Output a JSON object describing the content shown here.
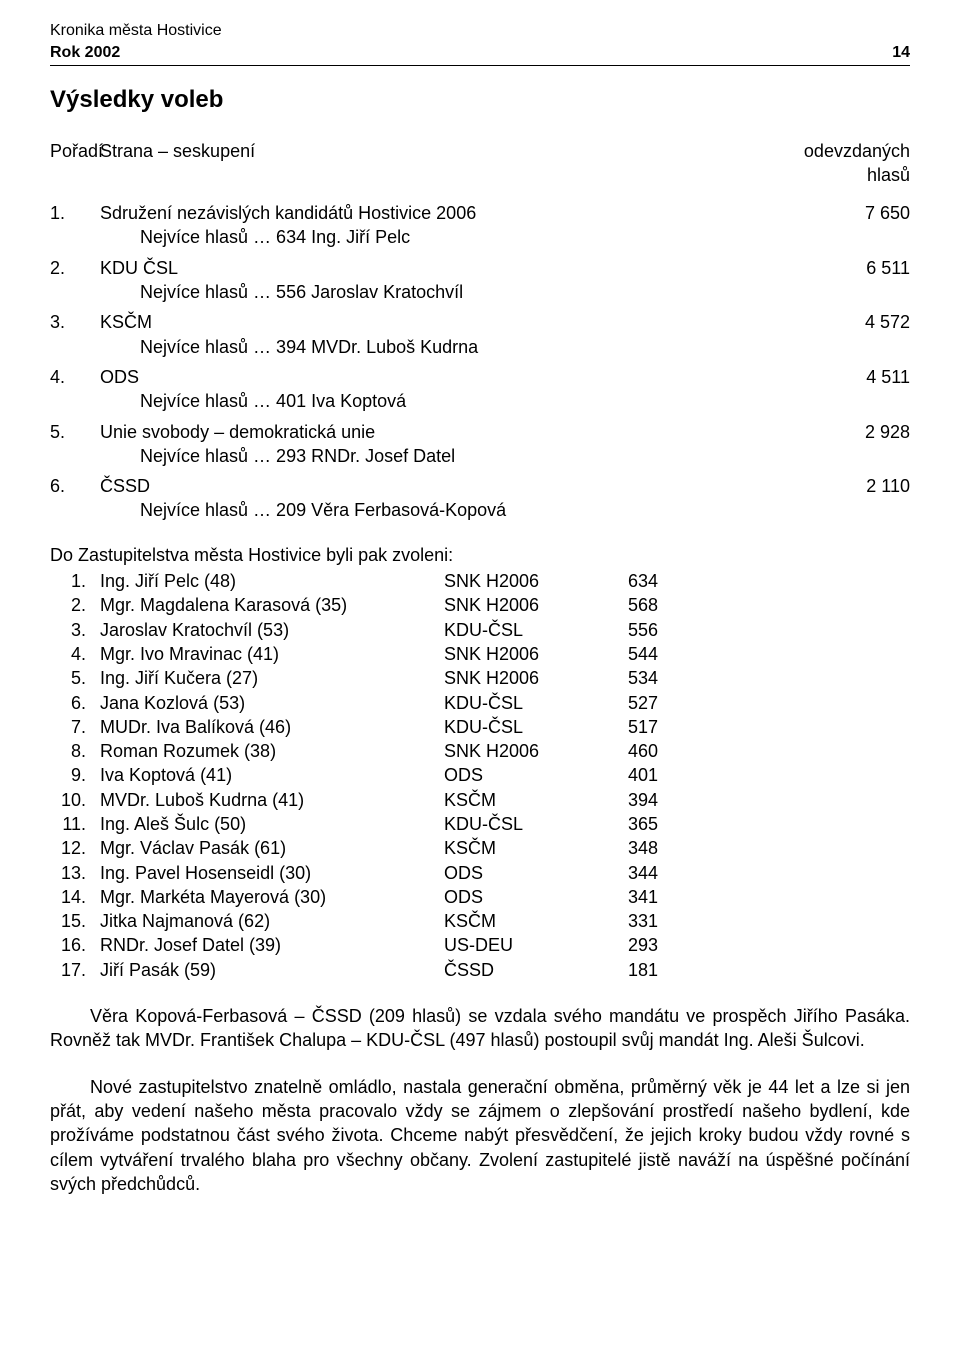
{
  "header": {
    "line1": "Kronika města Hostivice",
    "line2_left": "Rok 2002",
    "line2_right": "14"
  },
  "title": "Výsledky voleb",
  "parties_header": {
    "col1": "Pořadí",
    "col2": "Strana – seskupení",
    "col3": "odevzdaných hlasů"
  },
  "parties": [
    {
      "num": "1.",
      "name": "Sdružení nezávislých kandidátů Hostivice 2006",
      "votes": "7 650",
      "sub": "Nejvíce hlasů … 634 Ing. Jiří Pelc"
    },
    {
      "num": "2.",
      "name": "KDU ČSL",
      "votes": "6 511",
      "sub": "Nejvíce hlasů … 556 Jaroslav Kratochvíl"
    },
    {
      "num": "3.",
      "name": "KSČM",
      "votes": "4 572",
      "sub": "Nejvíce hlasů … 394 MVDr. Luboš Kudrna"
    },
    {
      "num": "4.",
      "name": "ODS",
      "votes": "4 511",
      "sub": "Nejvíce hlasů … 401 Iva Koptová"
    },
    {
      "num": "5.",
      "name": "Unie svobody – demokratická unie",
      "votes": "2 928",
      "sub": "Nejvíce hlasů … 293 RNDr. Josef Datel"
    },
    {
      "num": "6.",
      "name": "ČSSD",
      "votes": "2 110",
      "sub": "Nejvíce hlasů … 209 Věra Ferbasová-Kopová"
    }
  ],
  "elected_intro": "Do Zastupitelstva města Hostivice byli pak zvoleni:",
  "elected": [
    {
      "num": "1.",
      "name": "Ing. Jiří Pelc (48)",
      "party": "SNK H2006",
      "votes": "634"
    },
    {
      "num": "2.",
      "name": "Mgr. Magdalena Karasová (35)",
      "party": "SNK H2006",
      "votes": "568"
    },
    {
      "num": "3.",
      "name": "Jaroslav Kratochvíl (53)",
      "party": "KDU-ČSL",
      "votes": "556"
    },
    {
      "num": "4.",
      "name": "Mgr. Ivo Mravinac (41)",
      "party": "SNK H2006",
      "votes": "544"
    },
    {
      "num": "5.",
      "name": "Ing. Jiří Kučera (27)",
      "party": "SNK H2006",
      "votes": "534"
    },
    {
      "num": "6.",
      "name": "Jana Kozlová (53)",
      "party": "KDU-ČSL",
      "votes": "527"
    },
    {
      "num": "7.",
      "name": "MUDr. Iva Balíková (46)",
      "party": "KDU-ČSL",
      "votes": "517"
    },
    {
      "num": "8.",
      "name": "Roman Rozumek (38)",
      "party": "SNK H2006",
      "votes": "460"
    },
    {
      "num": "9.",
      "name": "Iva Koptová (41)",
      "party": "ODS",
      "votes": "401"
    },
    {
      "num": "10.",
      "name": "MVDr. Luboš Kudrna (41)",
      "party": "KSČM",
      "votes": "394"
    },
    {
      "num": "11.",
      "name": "Ing. Aleš Šulc (50)",
      "party": "KDU-ČSL",
      "votes": "365"
    },
    {
      "num": "12.",
      "name": "Mgr. Václav Pasák (61)",
      "party": "KSČM",
      "votes": "348"
    },
    {
      "num": "13.",
      "name": "Ing. Pavel Hosenseidl (30)",
      "party": "ODS",
      "votes": "344"
    },
    {
      "num": "14.",
      "name": "Mgr. Markéta Mayerová (30)",
      "party": "ODS",
      "votes": "341"
    },
    {
      "num": "15.",
      "name": "Jitka Najmanová (62)",
      "party": "KSČM",
      "votes": "331"
    },
    {
      "num": "16.",
      "name": "RNDr. Josef Datel (39)",
      "party": "US-DEU",
      "votes": "293"
    },
    {
      "num": "17.",
      "name": "Jiří Pasák (59)",
      "party": "ČSSD",
      "votes": "181"
    }
  ],
  "paragraph1": "Věra Kopová-Ferbasová – ČSSD (209 hlasů) se vzdala svého mandátu ve prospěch Jiřího Pasáka. Rovněž tak MVDr. František Chalupa – KDU-ČSL (497 hlasů) postoupil svůj mandát Ing. Aleši Šulcovi.",
  "paragraph2": "Nové zastupitelstvo znatelně omládlo, nastala generační obměna, průměrný věk je 44 let a lze si jen přát, aby vedení našeho města pracovalo vždy se zájmem o zlepšování prostředí našeho bydlení, kde prožíváme podstatnou část svého života. Chceme nabýt přesvědčení, že jejich kroky budou vždy rovné s cílem vytváření trvalého blaha pro všechny občany. Zvolení zastupitelé jistě naváží na úspěšné počínání svých předchůdců."
}
